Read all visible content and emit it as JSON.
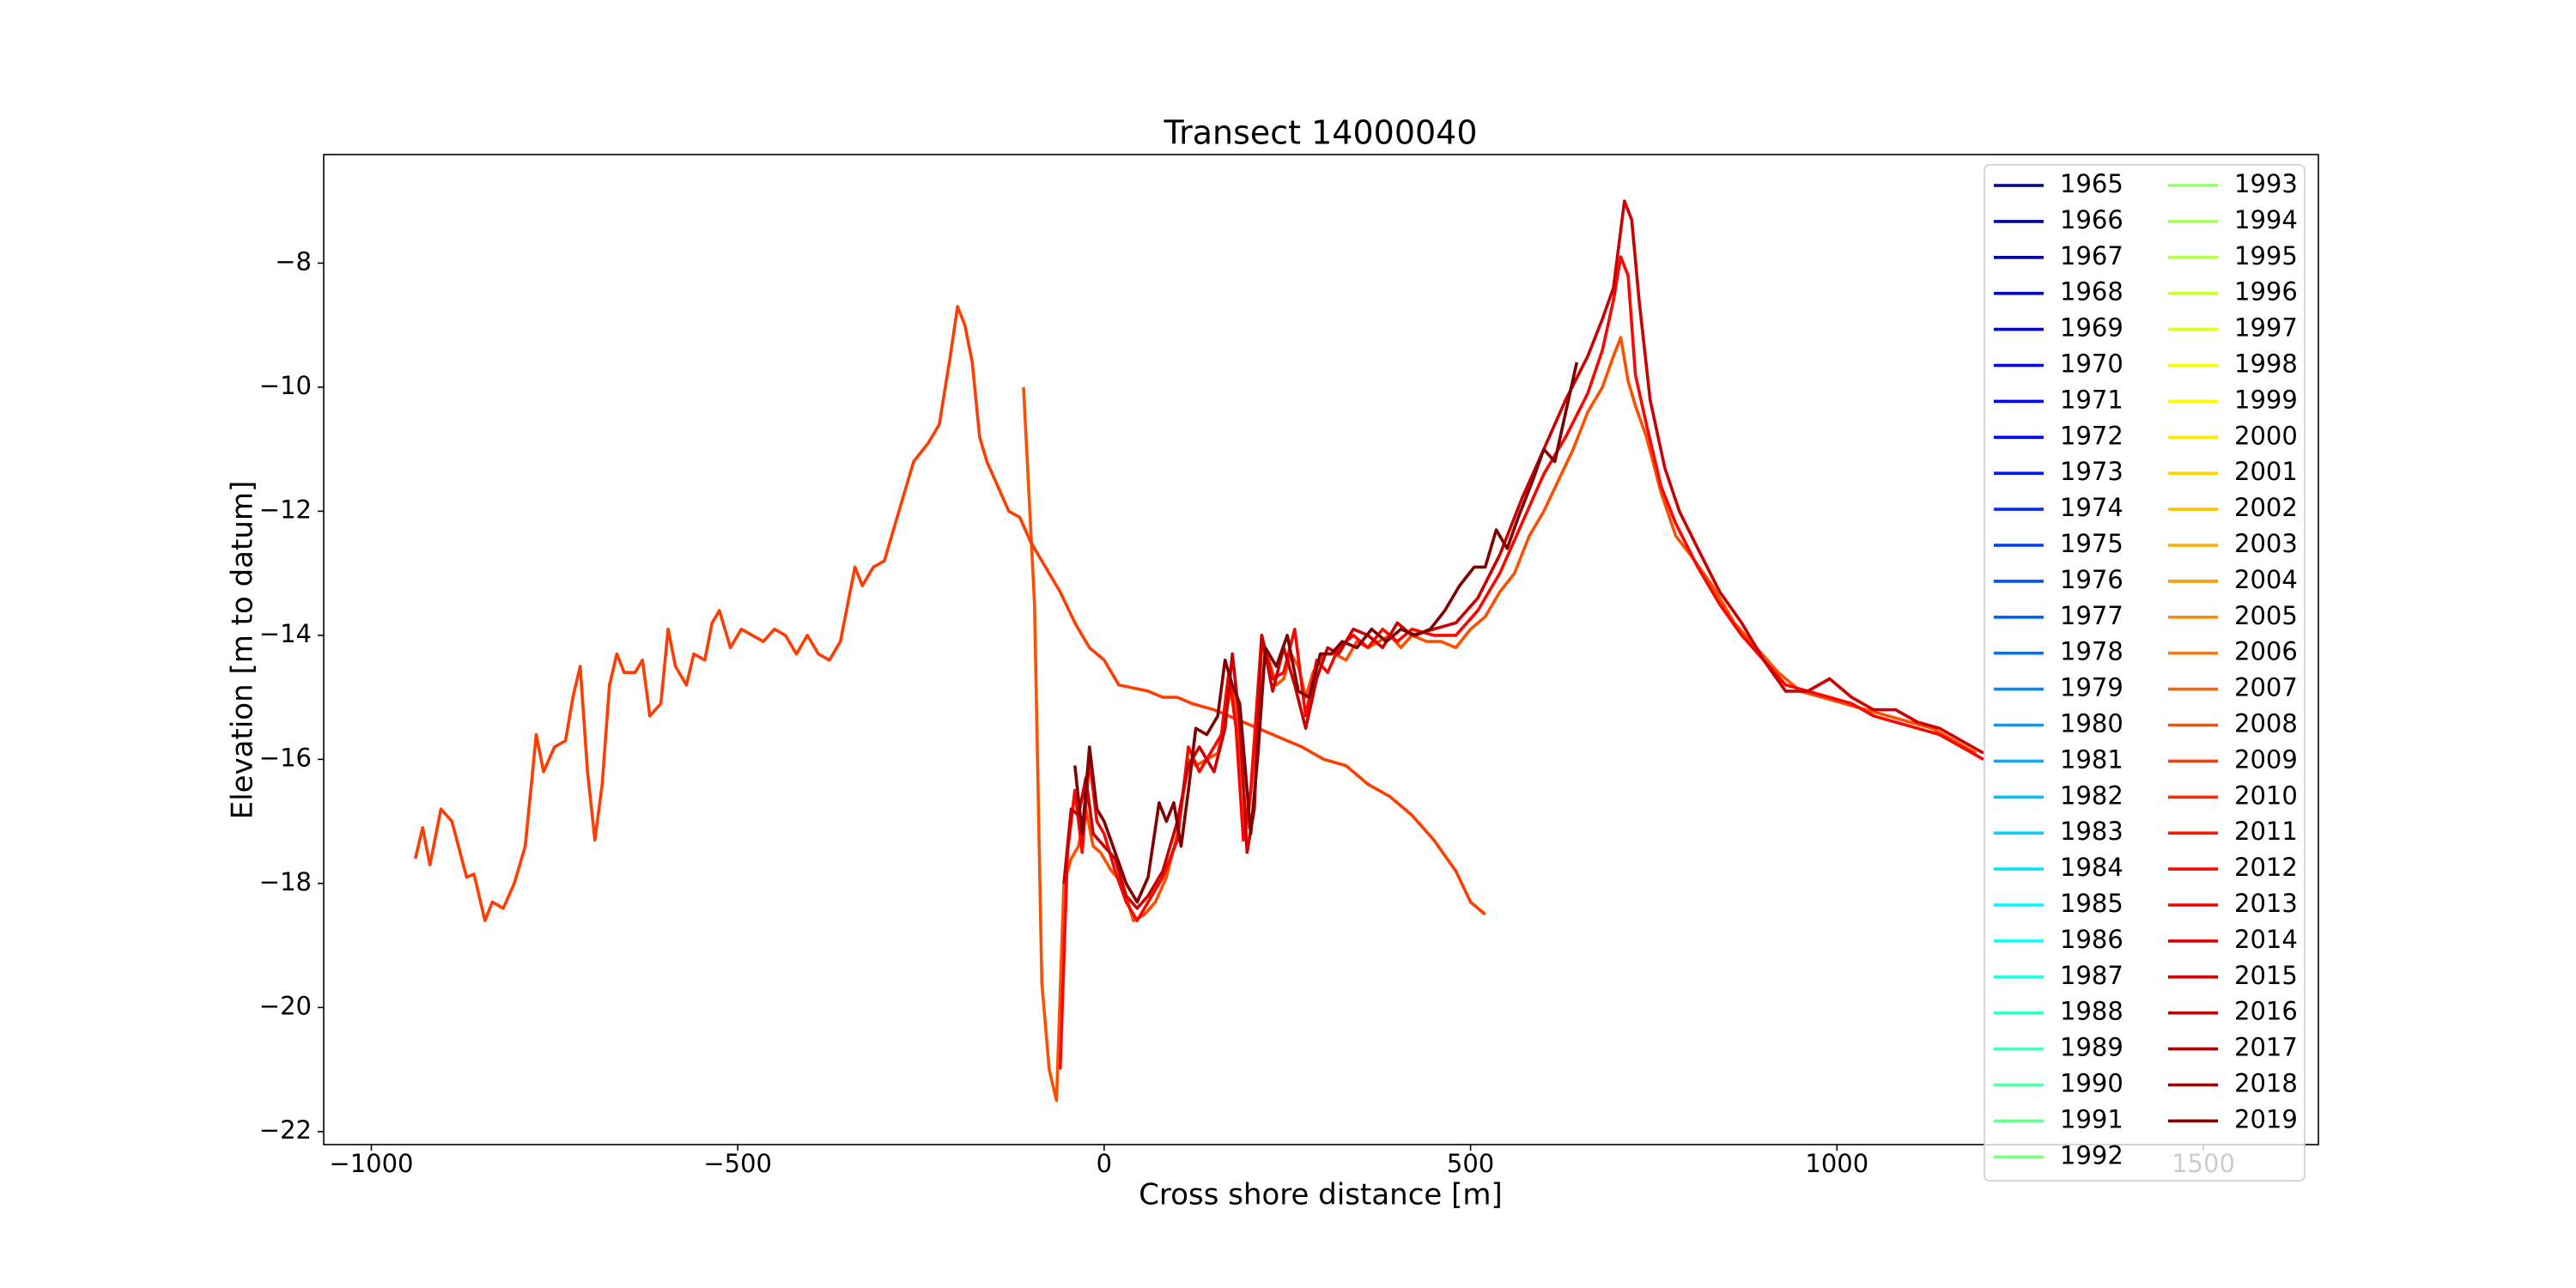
{
  "chart_data": {
    "type": "line",
    "title": "Transect 14000040",
    "x_label": "Cross shore distance [m]",
    "y_label": "Elevation [m to datum]",
    "xlim": [
      -1065,
      1657
    ],
    "ylim": [
      -22.21,
      -6.25
    ],
    "xticks": [
      {
        "value": -1000,
        "label": "−1000"
      },
      {
        "value": -500,
        "label": "−500"
      },
      0,
      500,
      1000,
      1500
    ],
    "yticks": [
      {
        "value": -8,
        "label": "−8"
      },
      {
        "value": -10,
        "label": "−10"
      },
      {
        "value": -12,
        "label": "−12"
      },
      {
        "value": -14,
        "label": "−14"
      },
      {
        "value": -16,
        "label": "−16"
      },
      {
        "value": -18,
        "label": "−18"
      },
      {
        "value": -20,
        "label": "−20"
      },
      {
        "value": -22,
        "label": "−22"
      }
    ],
    "grid": false,
    "legend_loc": "upper right",
    "legend_columns": 2,
    "series": [
      {
        "name": "1965",
        "color": "#000080",
        "x": [],
        "values": []
      },
      {
        "name": "1966",
        "color": "#000092",
        "x": [],
        "values": []
      },
      {
        "name": "1967",
        "color": "#0000a5",
        "x": [],
        "values": []
      },
      {
        "name": "1968",
        "color": "#0000b8",
        "x": [],
        "values": []
      },
      {
        "name": "1969",
        "color": "#0000cb",
        "x": [],
        "values": []
      },
      {
        "name": "1970",
        "color": "#0000de",
        "x": [],
        "values": []
      },
      {
        "name": "1971",
        "color": "#0000f1",
        "x": [],
        "values": []
      },
      {
        "name": "1972",
        "color": "#0005ff",
        "x": [],
        "values": []
      },
      {
        "name": "1973",
        "color": "#0018ff",
        "x": [],
        "values": []
      },
      {
        "name": "1974",
        "color": "#002aff",
        "x": [],
        "values": []
      },
      {
        "name": "1975",
        "color": "#003dff",
        "x": [],
        "values": []
      },
      {
        "name": "1976",
        "color": "#0050ff",
        "x": [],
        "values": []
      },
      {
        "name": "1977",
        "color": "#0063ff",
        "x": [],
        "values": []
      },
      {
        "name": "1978",
        "color": "#0076ff",
        "x": [],
        "values": []
      },
      {
        "name": "1979",
        "color": "#0089ff",
        "x": [],
        "values": []
      },
      {
        "name": "1980",
        "color": "#009cff",
        "x": [],
        "values": []
      },
      {
        "name": "1981",
        "color": "#00aeff",
        "x": [],
        "values": []
      },
      {
        "name": "1982",
        "color": "#00c1ff",
        "x": [],
        "values": []
      },
      {
        "name": "1983",
        "color": "#00d4ff",
        "x": [],
        "values": []
      },
      {
        "name": "1984",
        "color": "#00e7ff",
        "x": [],
        "values": []
      },
      {
        "name": "1985",
        "color": "#00faff",
        "x": [],
        "values": []
      },
      {
        "name": "1986",
        "color": "#0efff1",
        "x": [],
        "values": []
      },
      {
        "name": "1987",
        "color": "#21ffde",
        "x": [],
        "values": []
      },
      {
        "name": "1988",
        "color": "#34ffcb",
        "x": [],
        "values": []
      },
      {
        "name": "1989",
        "color": "#47ffb8",
        "x": [],
        "values": []
      },
      {
        "name": "1990",
        "color": "#5affa5",
        "x": [],
        "values": []
      },
      {
        "name": "1991",
        "color": "#6dff92",
        "x": [],
        "values": []
      },
      {
        "name": "1992",
        "color": "#80ff80",
        "x": [],
        "values": []
      },
      {
        "name": "1993",
        "color": "#92ff6d",
        "x": [],
        "values": []
      },
      {
        "name": "1994",
        "color": "#a5ff5a",
        "x": [],
        "values": []
      },
      {
        "name": "1995",
        "color": "#b8ff47",
        "x": [],
        "values": []
      },
      {
        "name": "1996",
        "color": "#cbff34",
        "x": [],
        "values": []
      },
      {
        "name": "1997",
        "color": "#deff21",
        "x": [],
        "values": []
      },
      {
        "name": "1998",
        "color": "#f1ff0e",
        "x": [],
        "values": []
      },
      {
        "name": "1999",
        "color": "#fffa00",
        "x": [],
        "values": []
      },
      {
        "name": "2000",
        "color": "#ffe700",
        "x": [],
        "values": []
      },
      {
        "name": "2001",
        "color": "#ffd400",
        "x": [],
        "values": []
      },
      {
        "name": "2002",
        "color": "#ffc100",
        "x": [],
        "values": []
      },
      {
        "name": "2003",
        "color": "#ffae00",
        "x": [],
        "values": []
      },
      {
        "name": "2004",
        "color": "#ff9c00",
        "x": [],
        "values": []
      },
      {
        "name": "2005",
        "color": "#ff8900",
        "x": [],
        "values": []
      },
      {
        "name": "2006",
        "color": "#ff7600",
        "x": [],
        "values": []
      },
      {
        "name": "2007",
        "color": "#ff6300",
        "x": [],
        "values": []
      },
      {
        "name": "2008",
        "color": "#ff5000",
        "x": [
          -110,
          -95,
          -85,
          -75,
          -65,
          -55,
          -45,
          -35,
          -25,
          -15,
          -5,
          10,
          25,
          40,
          55,
          70,
          85,
          100,
          115,
          125,
          140,
          155,
          165,
          175,
          185,
          195,
          205,
          215,
          225,
          235,
          245,
          255,
          265,
          275,
          285,
          300,
          315,
          330,
          345,
          360,
          375,
          390,
          405,
          420,
          440,
          460,
          480,
          500,
          520,
          540,
          560,
          580,
          600,
          620,
          640,
          660,
          680,
          695,
          705,
          715,
          725,
          740,
          760,
          780,
          800,
          830,
          860,
          890,
          920,
          950,
          980,
          1010,
          1040,
          1070,
          1100,
          1130,
          1160,
          1190
        ],
        "values": [
          -10.0,
          -13.5,
          -19.6,
          -21.0,
          -21.5,
          -18.0,
          -17.6,
          -17.4,
          -16.8,
          -17.4,
          -17.5,
          -17.8,
          -18.0,
          -18.6,
          -18.5,
          -18.3,
          -17.9,
          -17.2,
          -16.0,
          -16.1,
          -16.0,
          -15.9,
          -15.3,
          -14.8,
          -15.8,
          -17.1,
          -16.0,
          -14.2,
          -14.4,
          -14.8,
          -14.7,
          -14.3,
          -14.5,
          -15.0,
          -14.6,
          -14.3,
          -14.3,
          -14.4,
          -14.1,
          -14.2,
          -14.1,
          -14.0,
          -14.2,
          -14.0,
          -14.1,
          -14.1,
          -14.2,
          -13.9,
          -13.7,
          -13.3,
          -13.0,
          -12.4,
          -12.0,
          -11.5,
          -11.0,
          -10.4,
          -10.0,
          -9.5,
          -9.2,
          -9.9,
          -10.3,
          -10.8,
          -11.7,
          -12.4,
          -12.7,
          -13.2,
          -13.8,
          -14.2,
          -14.6,
          -14.9,
          -15.0,
          -15.1,
          -15.2,
          -15.3,
          -15.4,
          -15.5,
          -15.7,
          -15.9
        ]
      },
      {
        "name": "2009",
        "color": "#ff3d00",
        "x": [
          -940,
          -930,
          -920,
          -905,
          -890,
          -870,
          -860,
          -845,
          -835,
          -820,
          -805,
          -790,
          -775,
          -765,
          -750,
          -735,
          -725,
          -715,
          -705,
          -695,
          -685,
          -675,
          -665,
          -655,
          -640,
          -630,
          -620,
          -605,
          -595,
          -585,
          -570,
          -560,
          -545,
          -535,
          -525,
          -510,
          -495,
          -480,
          -465,
          -450,
          -435,
          -420,
          -405,
          -390,
          -375,
          -360,
          -350,
          -340,
          -330,
          -315,
          -300,
          -280,
          -260,
          -240,
          -225,
          -210,
          -200,
          -190,
          -180,
          -170,
          -160,
          -145,
          -130,
          -115,
          -100,
          -80,
          -60,
          -40,
          -20,
          0,
          20,
          40,
          60,
          80,
          100,
          120,
          150,
          180,
          210,
          240,
          270,
          300,
          330,
          360,
          390,
          420,
          450,
          480,
          500,
          520
        ],
        "values": [
          -17.6,
          -17.1,
          -17.7,
          -16.8,
          -17.0,
          -17.9,
          -17.85,
          -18.6,
          -18.3,
          -18.4,
          -18.0,
          -17.4,
          -15.6,
          -16.2,
          -15.8,
          -15.7,
          -15.0,
          -14.5,
          -16.2,
          -17.3,
          -16.4,
          -14.8,
          -14.3,
          -14.6,
          -14.6,
          -14.4,
          -15.3,
          -15.1,
          -13.9,
          -14.5,
          -14.8,
          -14.3,
          -14.4,
          -13.8,
          -13.6,
          -14.2,
          -13.9,
          -14.0,
          -14.1,
          -13.9,
          -14.0,
          -14.3,
          -14.0,
          -14.3,
          -14.4,
          -14.1,
          -13.5,
          -12.9,
          -13.2,
          -12.9,
          -12.8,
          -12.0,
          -11.2,
          -10.9,
          -10.6,
          -9.5,
          -8.7,
          -9.0,
          -9.6,
          -10.8,
          -11.2,
          -11.6,
          -12.0,
          -12.1,
          -12.5,
          -12.9,
          -13.3,
          -13.8,
          -14.2,
          -14.4,
          -14.8,
          -14.85,
          -14.9,
          -15.0,
          -15.0,
          -15.1,
          -15.2,
          -15.35,
          -15.5,
          -15.65,
          -15.8,
          -16.0,
          -16.1,
          -16.4,
          -16.6,
          -16.9,
          -17.3,
          -17.8,
          -18.3,
          -18.5
        ]
      },
      {
        "name": "2010",
        "color": "#ff2a00",
        "x": [],
        "values": []
      },
      {
        "name": "2011",
        "color": "#ff1800",
        "x": [],
        "values": []
      },
      {
        "name": "2012",
        "color": "#ff0500",
        "x": [
          -60,
          -50,
          -40,
          -30,
          -20,
          -10,
          0,
          15,
          30,
          45,
          60,
          80,
          100,
          115,
          130,
          145,
          160,
          170,
          180,
          190,
          200,
          215,
          230,
          245,
          260,
          275,
          290,
          305,
          320,
          340,
          360,
          380,
          400,
          420,
          450,
          480,
          510,
          540,
          570,
          600,
          630,
          660,
          680,
          695,
          705,
          715,
          725,
          740,
          760,
          780,
          810,
          840,
          870,
          900,
          930,
          960,
          990,
          1020,
          1050,
          1080,
          1110,
          1140,
          1170,
          1200
        ],
        "values": [
          -21.0,
          -17.5,
          -16.5,
          -17.5,
          -16.0,
          -17.0,
          -17.2,
          -17.8,
          -18.3,
          -18.6,
          -18.3,
          -17.9,
          -17.3,
          -15.8,
          -16.2,
          -15.9,
          -15.6,
          -14.6,
          -15.5,
          -17.3,
          -16.5,
          -14.0,
          -14.7,
          -14.6,
          -13.9,
          -15.3,
          -14.4,
          -14.6,
          -14.2,
          -14.0,
          -14.2,
          -13.9,
          -14.1,
          -13.9,
          -14.0,
          -14.0,
          -13.6,
          -13.0,
          -12.2,
          -11.4,
          -10.8,
          -10.1,
          -9.4,
          -8.6,
          -7.9,
          -8.2,
          -9.8,
          -10.6,
          -11.6,
          -12.2,
          -12.9,
          -13.5,
          -14.0,
          -14.4,
          -14.8,
          -14.9,
          -15.0,
          -15.1,
          -15.3,
          -15.4,
          -15.5,
          -15.6,
          -15.8,
          -16.0
        ]
      },
      {
        "name": "2013",
        "color": "#f10000",
        "x": [],
        "values": []
      },
      {
        "name": "2014",
        "color": "#de0000",
        "x": [],
        "values": []
      },
      {
        "name": "2015",
        "color": "#cb0000",
        "x": [
          -55,
          -45,
          -35,
          -25,
          -15,
          0,
          15,
          30,
          45,
          60,
          80,
          100,
          115,
          130,
          150,
          165,
          175,
          185,
          195,
          205,
          215,
          230,
          245,
          260,
          275,
          290,
          305,
          320,
          340,
          360,
          380,
          400,
          420,
          450,
          480,
          510,
          540,
          570,
          600,
          630,
          660,
          680,
          695,
          710,
          720,
          730,
          745,
          765,
          785,
          810,
          840,
          870,
          900,
          930,
          960,
          990,
          1020,
          1050,
          1080,
          1110,
          1140,
          1170,
          1200
        ],
        "values": [
          -18.0,
          -16.8,
          -16.9,
          -16.3,
          -17.2,
          -17.4,
          -17.6,
          -18.2,
          -18.4,
          -18.2,
          -17.8,
          -17.0,
          -16.1,
          -15.8,
          -16.2,
          -15.5,
          -14.3,
          -15.4,
          -17.5,
          -16.8,
          -14.0,
          -14.9,
          -14.2,
          -14.8,
          -15.5,
          -14.7,
          -14.2,
          -14.3,
          -13.9,
          -14.0,
          -14.2,
          -13.8,
          -14.0,
          -13.9,
          -13.8,
          -13.4,
          -12.7,
          -11.8,
          -11.0,
          -10.2,
          -9.5,
          -8.9,
          -8.4,
          -7.0,
          -7.3,
          -8.6,
          -10.2,
          -11.3,
          -12.0,
          -12.6,
          -13.3,
          -13.8,
          -14.4,
          -14.9,
          -14.9,
          -14.7,
          -15.0,
          -15.2,
          -15.2,
          -15.4,
          -15.5,
          -15.7,
          -15.9
        ]
      },
      {
        "name": "2016",
        "color": "#b80000",
        "x": [],
        "values": []
      },
      {
        "name": "2017",
        "color": "#a50000",
        "x": [],
        "values": []
      },
      {
        "name": "2018",
        "color": "#920000",
        "x": [],
        "values": []
      },
      {
        "name": "2019",
        "color": "#800000",
        "x": [
          -40,
          -30,
          -20,
          -10,
          0,
          15,
          30,
          45,
          60,
          75,
          85,
          95,
          105,
          115,
          125,
          140,
          155,
          165,
          175,
          185,
          200,
          210,
          220,
          235,
          250,
          265,
          280,
          295,
          310,
          325,
          345,
          365,
          385,
          405,
          425,
          445,
          465,
          485,
          505,
          520,
          535,
          550,
          565,
          585,
          600,
          615,
          630,
          645
        ],
        "values": [
          -16.1,
          -17.2,
          -15.8,
          -16.8,
          -17.0,
          -17.5,
          -18.0,
          -18.3,
          -17.9,
          -16.7,
          -17.0,
          -16.7,
          -17.4,
          -16.5,
          -15.5,
          -15.6,
          -15.3,
          -14.4,
          -14.8,
          -15.1,
          -17.2,
          -15.9,
          -14.2,
          -14.5,
          -14.0,
          -14.9,
          -15.0,
          -14.3,
          -14.3,
          -14.1,
          -14.2,
          -13.9,
          -14.1,
          -13.9,
          -14.0,
          -13.9,
          -13.6,
          -13.2,
          -12.9,
          -12.9,
          -12.3,
          -12.6,
          -12.1,
          -11.5,
          -11.0,
          -11.2,
          -10.4,
          -9.6
        ]
      }
    ]
  }
}
